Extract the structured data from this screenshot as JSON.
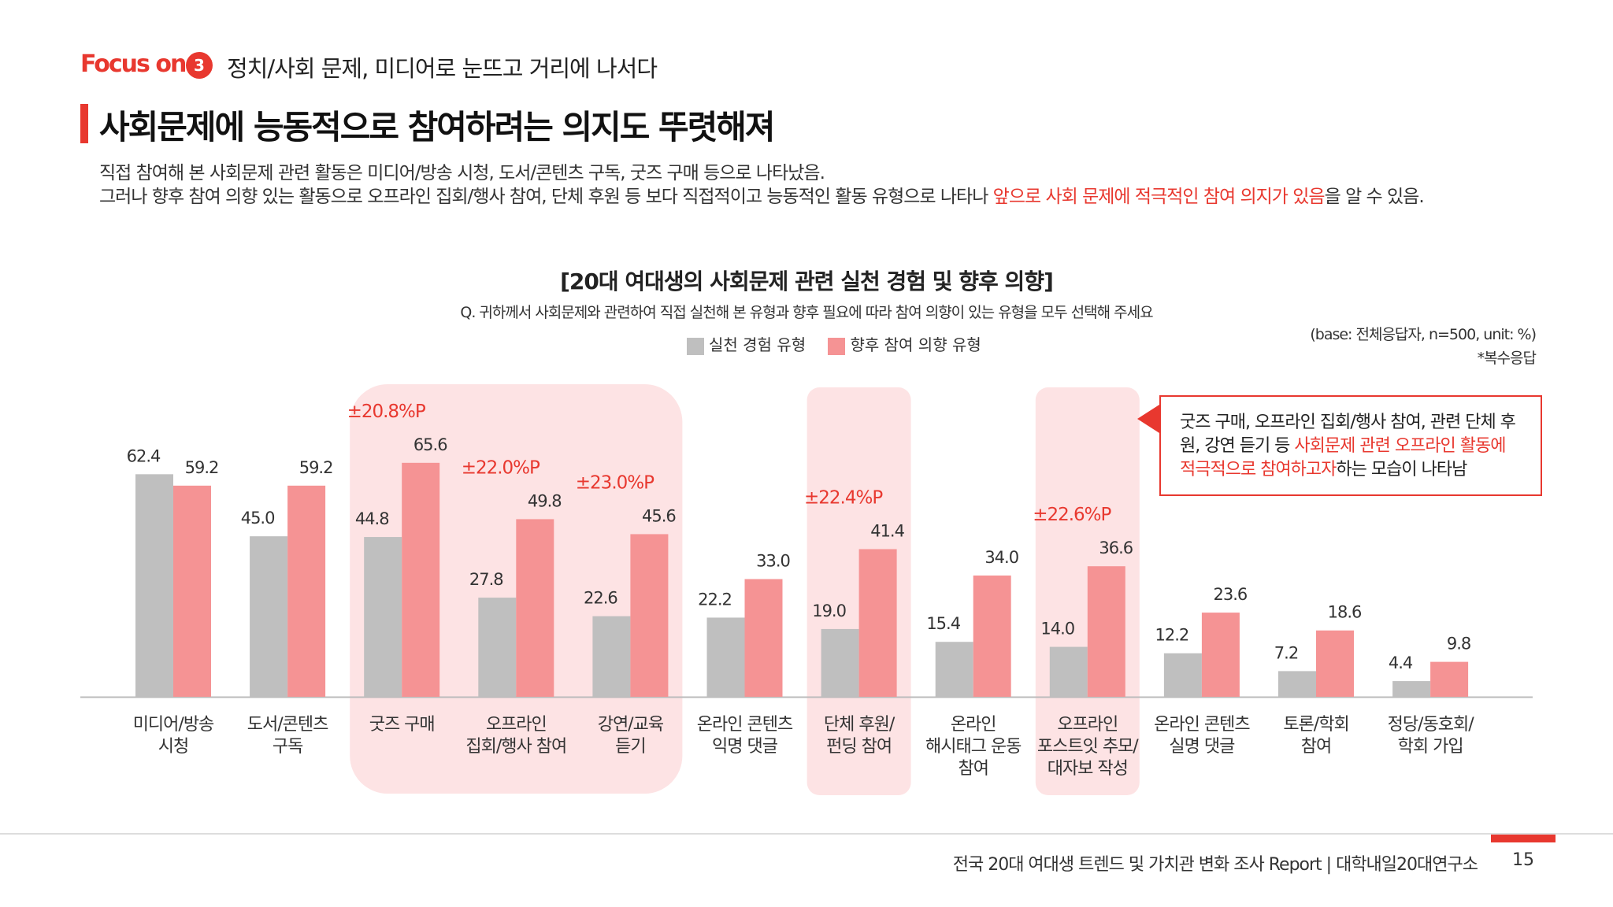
{
  "header": {
    "focus_label": "Focus on",
    "section_number": "3",
    "section_title": "정치/사회 문제, 미디어로 눈뜨고 거리에 나서다"
  },
  "page_title": "사회문제에 능동적으로 참여하려는 의지도 뚜렷해져",
  "description": {
    "line1": "직접 참여해 본 사회문제 관련 활동은 미디어/방송 시청, 도서/콘텐츠 구독, 굿즈 구매 등으로 나타났음.",
    "line2_prefix": "그러나 향후 참여 의향 있는 활동으로 오프라인 집회/행사 참여, 단체 후원 등 보다 직접적이고 능동적인 활동 유형으로 나타나 ",
    "line2_highlight": "앞으로 사회 문제에 적극적인 참여 의지가 있음",
    "line2_suffix": "을 알 수 있음."
  },
  "notes": {
    "base": "(base: 전체응답자, n=500, unit: %)",
    "multi": "*복수응답"
  },
  "callout": {
    "prefix": "굿즈 구매, 오프라인 집회/행사 참여, 관련 단체 후원, 강연 듣기 등 ",
    "highlight": "사회문제 관련 오프라인 활동에 적극적으로 참여하고자",
    "suffix": "하는 모습이 나타남"
  },
  "footer": {
    "text": "전국 20대 여대생 트렌드 및 가치관 변화 조사 Report  |  대학내일20대연구소",
    "page_number": "15"
  },
  "colors": {
    "accent": "#e8382f",
    "experience_bar": "#bfbfbf",
    "intention_bar": "#f59394",
    "highlight_box": "#fde3e4",
    "diff_text": "#e8382f"
  },
  "chart_data": {
    "type": "bar",
    "title": "[20대 여대생의 사회문제 관련 실천 경험 및 향후 의향]",
    "question": "Q. 귀하께서 사회문제와 관련하여 직접 실천해 본 유형과 향후 필요에 따라 참여 의향이 있는 유형을 모두 선택해 주세요",
    "ylim": [
      0,
      80
    ],
    "grid": false,
    "legend_position": "top-center",
    "categories": [
      [
        "미디어/방송",
        "시청"
      ],
      [
        "도서/콘텐츠",
        "구독"
      ],
      [
        "굿즈 구매"
      ],
      [
        "오프라인",
        "집회/행사 참여"
      ],
      [
        "강연/교육",
        "듣기"
      ],
      [
        "온라인 콘텐츠",
        "익명 댓글"
      ],
      [
        "단체 후원/",
        "펀딩 참여"
      ],
      [
        "온라인",
        "해시태그 운동",
        "참여"
      ],
      [
        "오프라인",
        "포스트잇 추모/",
        "대자보 작성"
      ],
      [
        "온라인 콘텐츠",
        "실명 댓글"
      ],
      [
        "토론/학회",
        "참여"
      ],
      [
        "정당/동호회/",
        "학회 가입"
      ]
    ],
    "series": [
      {
        "name": "실천 경험 유형",
        "values": [
          62.4,
          45.0,
          44.8,
          27.8,
          22.6,
          22.2,
          19.0,
          15.4,
          14.0,
          12.2,
          7.2,
          4.4
        ]
      },
      {
        "name": "향후 참여 의향 유형",
        "values": [
          59.2,
          59.2,
          65.6,
          49.8,
          45.6,
          33.0,
          41.4,
          34.0,
          36.6,
          23.6,
          18.6,
          9.8
        ]
      }
    ],
    "value_labels": [
      [
        "62.4",
        "45.0",
        "44.8",
        "27.8",
        "22.6",
        "22.2",
        "19.0",
        "15.4",
        "14.0",
        "12.2",
        "7.2",
        "4.4"
      ],
      [
        "59.2",
        "59.2",
        "65.6",
        "49.8",
        "45.6",
        "33.0",
        "41.4",
        "34.0",
        "36.6",
        "23.6",
        "18.6",
        "9.8"
      ]
    ],
    "highlight_groups": [
      [
        2,
        4
      ],
      [
        6,
        6
      ],
      [
        8,
        8
      ]
    ],
    "differences": [
      {
        "index": 2,
        "label": "±20.8%P"
      },
      {
        "index": 3,
        "label": "±22.0%P"
      },
      {
        "index": 4,
        "label": "±23.0%P"
      },
      {
        "index": 6,
        "label": "±22.4%P"
      },
      {
        "index": 8,
        "label": "±22.6%P"
      }
    ]
  }
}
